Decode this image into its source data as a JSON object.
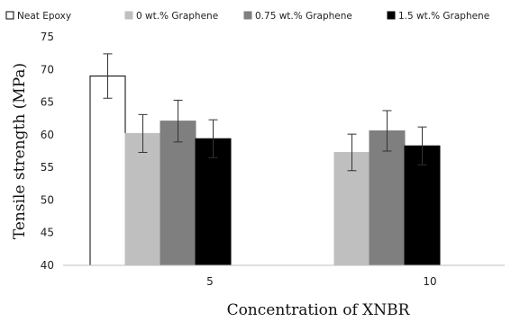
{
  "chart_data": {
    "type": "bar",
    "xlabel": "Concentration of XNBR",
    "ylabel": "Tensile strength (MPa)",
    "ylim": [
      40,
      75
    ],
    "yticks": [
      40,
      45,
      50,
      55,
      60,
      65,
      70,
      75
    ],
    "legend_position": "top",
    "grid": false,
    "groups": [
      {
        "category": "5",
        "bars": [
          {
            "series": "Neat Epoxy",
            "value": 69.0,
            "error": 3.4
          },
          {
            "series": "0 wt.% Graphene",
            "value": 60.2,
            "error": 2.9
          },
          {
            "series": "0.75 wt.% Graphene",
            "value": 62.1,
            "error": 3.2
          },
          {
            "series": "1.5 wt.% Graphene",
            "value": 59.4,
            "error": 2.9
          }
        ]
      },
      {
        "category": "10",
        "bars": [
          {
            "series": "0 wt.% Graphene",
            "value": 57.3,
            "error": 2.8
          },
          {
            "series": "0.75 wt.% Graphene",
            "value": 60.6,
            "error": 3.1
          },
          {
            "series": "1.5 wt.% Graphene",
            "value": 58.3,
            "error": 2.9
          }
        ]
      }
    ],
    "series": [
      {
        "name": "Neat Epoxy",
        "color": "#ffffff",
        "stroke": "#000000"
      },
      {
        "name": "0 wt.% Graphene",
        "color": "#bfbfbf",
        "stroke": "#bfbfbf"
      },
      {
        "name": "0.75 wt.% Graphene",
        "color": "#7f7f7f",
        "stroke": "#7f7f7f"
      },
      {
        "name": "1.5 wt.% Graphene",
        "color": "#000000",
        "stroke": "#000000"
      }
    ]
  }
}
